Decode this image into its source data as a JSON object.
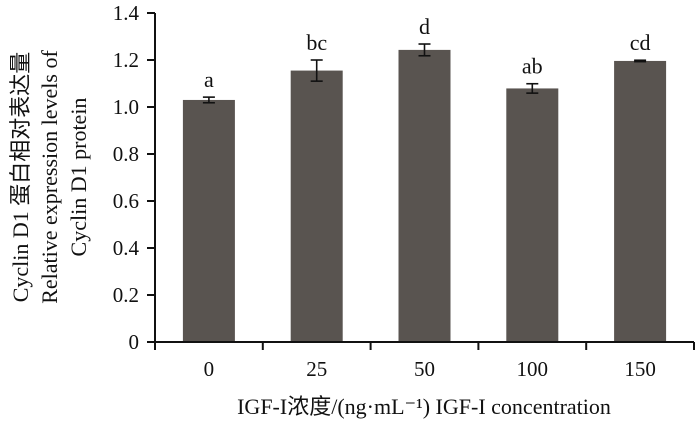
{
  "chart_data": {
    "type": "bar",
    "categories": [
      "0",
      "25",
      "50",
      "100",
      "150"
    ],
    "values": [
      1.03,
      1.155,
      1.243,
      1.079,
      1.196
    ],
    "errors": [
      0.012,
      0.045,
      0.025,
      0.02,
      0.003
    ],
    "significance": [
      "a",
      "bc",
      "d",
      "ab",
      "cd"
    ],
    "ylim": [
      0,
      1.4
    ],
    "yticks": [
      "0",
      "0.2",
      "0.4",
      "0.6",
      "0.8",
      "1.0",
      "1.2",
      "1.4"
    ],
    "xlabel": "IGF-I浓度/(ng·mL⁻¹)  IGF-I concentration",
    "ylabel_lines": [
      "Cyclin D1  蛋白相对表达量",
      "Relative expression levels of",
      "Cyclin D1 protein"
    ],
    "bar_color": "#595450",
    "grid": false
  }
}
